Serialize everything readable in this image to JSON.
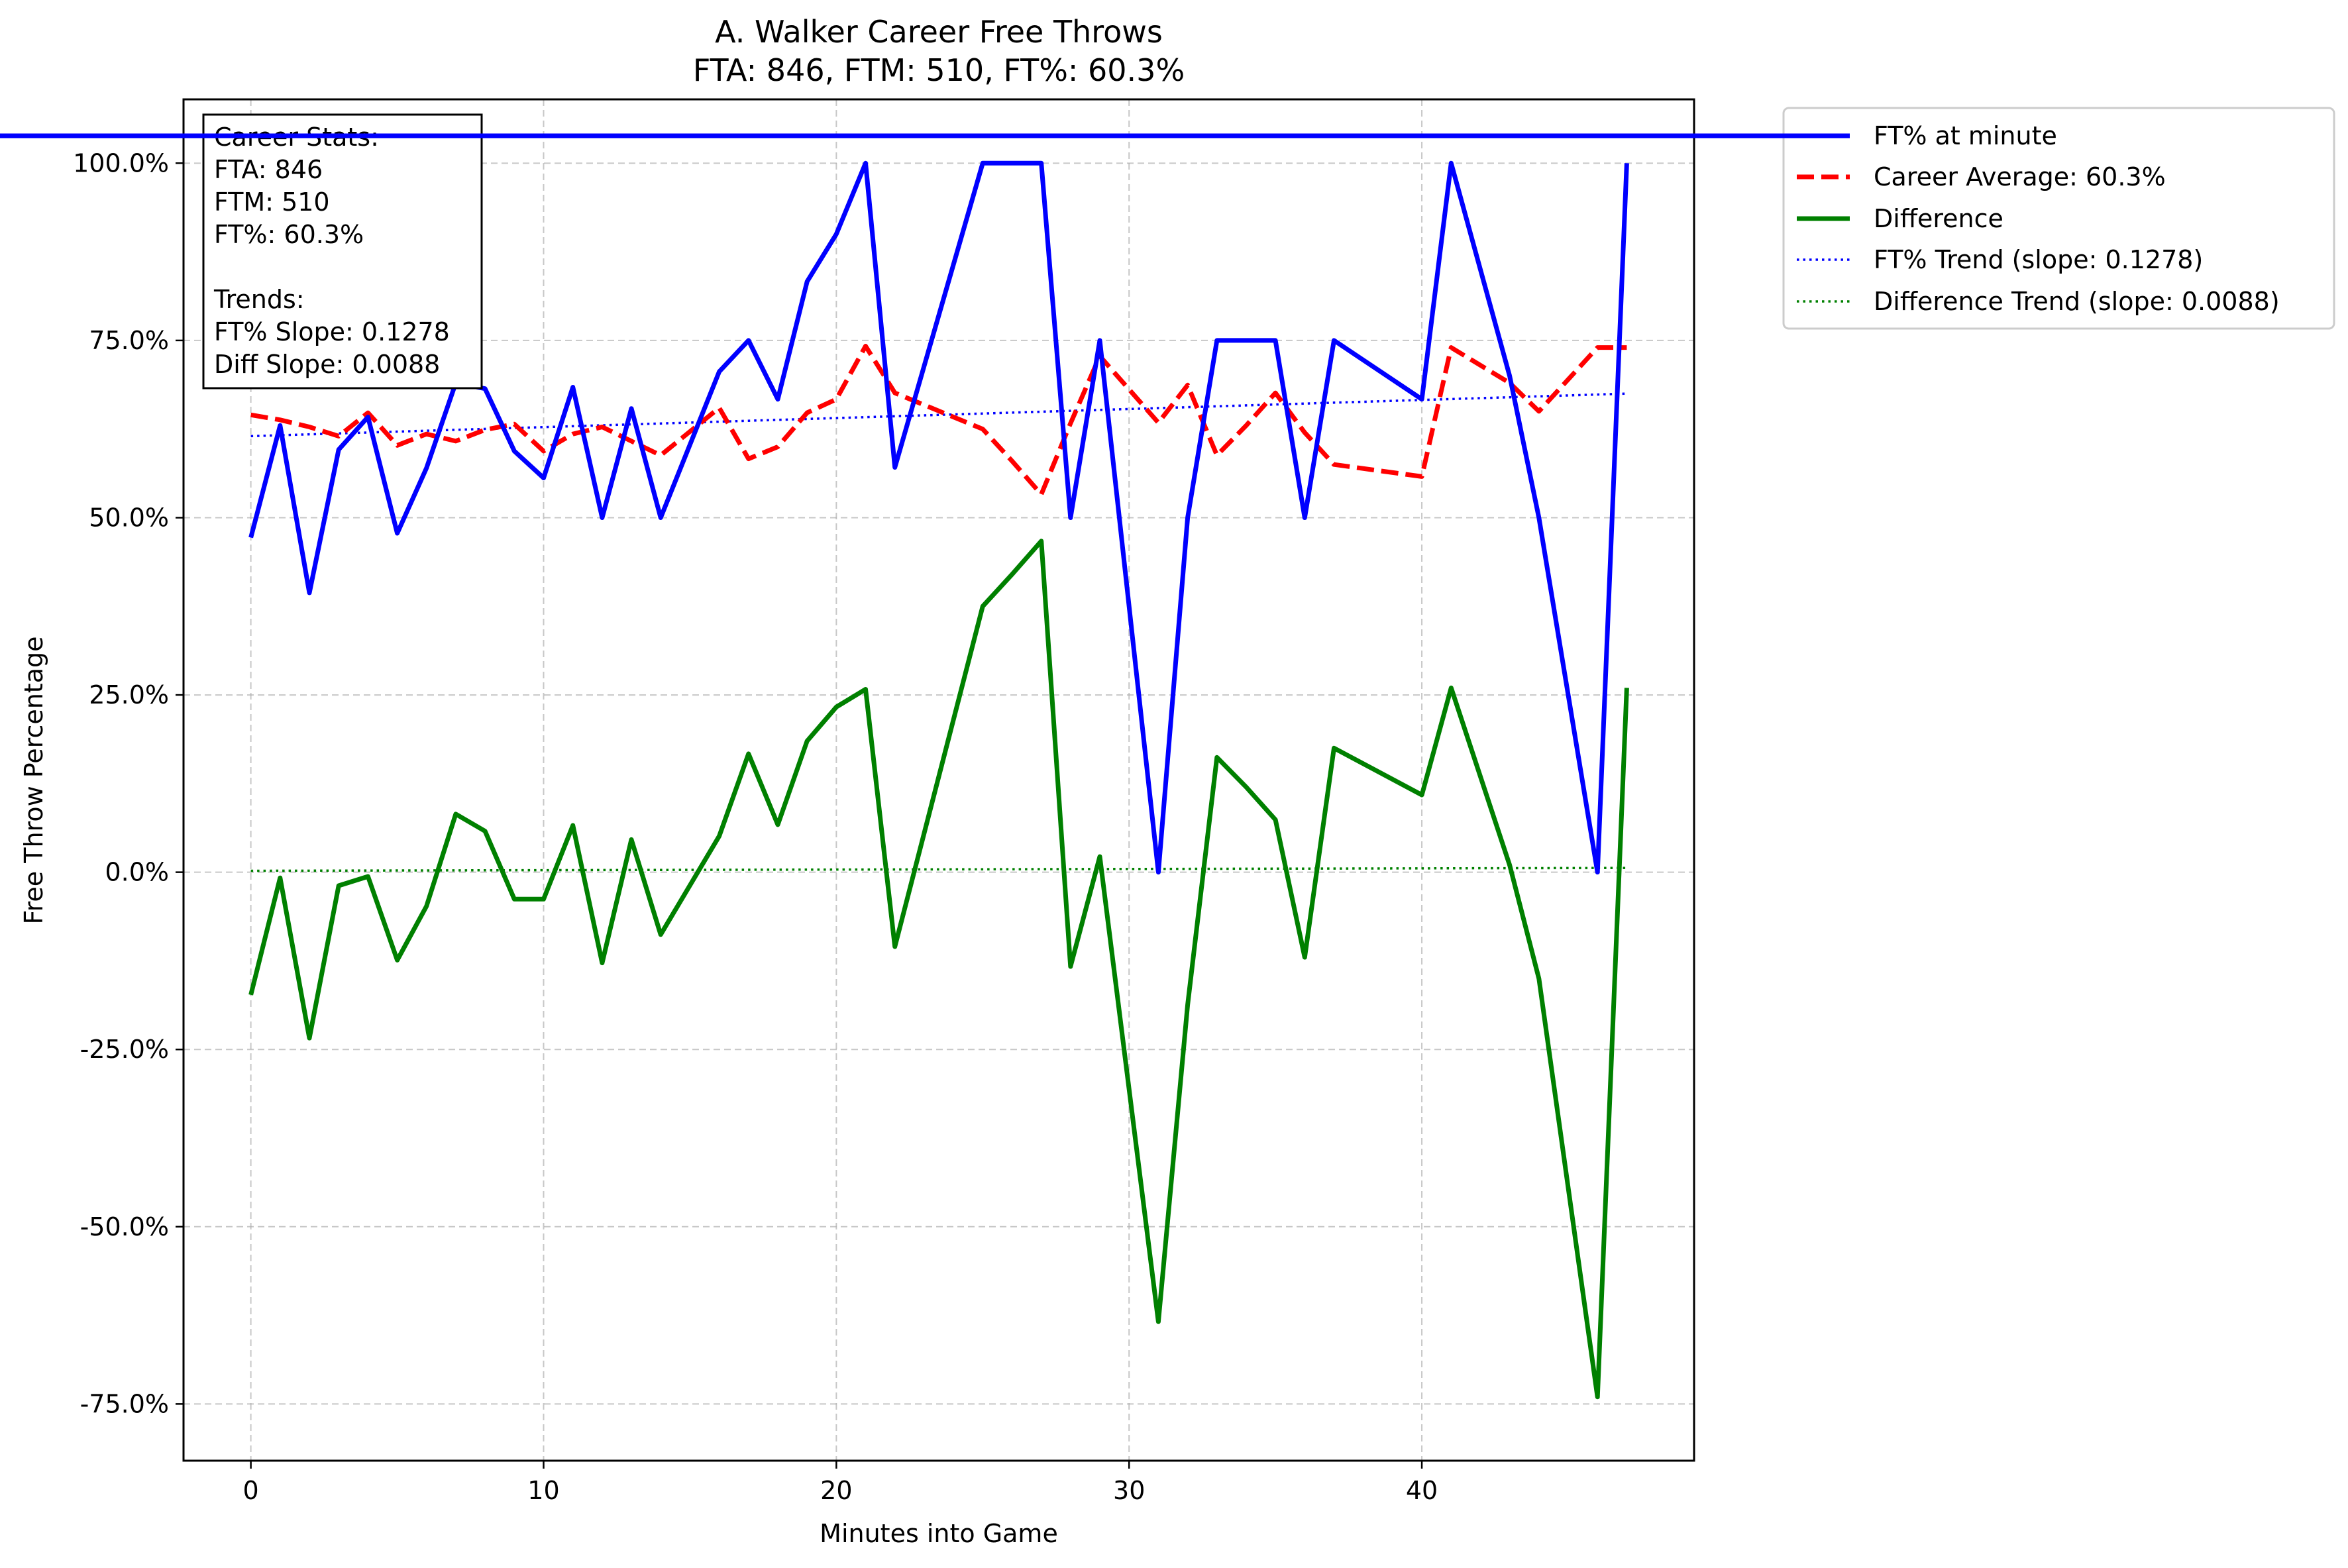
{
  "chart_data": {
    "type": "line",
    "title": "A. Walker Career Free Throws",
    "subtitle": "FTA: 846, FTM: 510, FT%: 60.3%",
    "xlabel": "Minutes into Game",
    "ylabel": "Free Throw Percentage",
    "xlim": [
      -2.3,
      49.3
    ],
    "ylim": [
      -0.83,
      1.09
    ],
    "x_ticks": [
      0,
      10,
      20,
      30,
      40
    ],
    "x_tick_labels": [
      "0",
      "10",
      "20",
      "30",
      "40"
    ],
    "y_ticks": [
      1.0,
      0.75,
      0.5,
      0.25,
      0.0,
      -0.25,
      -0.5,
      -0.75
    ],
    "y_tick_labels": [
      "100.0%",
      "75.0%",
      "50.0%",
      "25.0%",
      "0.0%",
      "-25.0%",
      "-50.0%",
      "-75.0%"
    ],
    "grid": true,
    "legend_position": "outside-top-right",
    "stats_box_lines": [
      "Career Stats:",
      "FTA: 846",
      "FTM: 510",
      "FT%: 60.3%",
      "",
      "Trends:",
      "FT% Slope: 0.1278",
      "Diff Slope: 0.0088"
    ],
    "series": [
      {
        "name": "FT% at minute",
        "color": "#0000ff",
        "style": "solid",
        "x": [
          0,
          1,
          2,
          3,
          4,
          5,
          6,
          7,
          8,
          9,
          10,
          11,
          12,
          13,
          14,
          16,
          17,
          18,
          19,
          20,
          21,
          22,
          25,
          26,
          27,
          28,
          29,
          31,
          32,
          33,
          34,
          35,
          36,
          37,
          40,
          41,
          43,
          44,
          46,
          47
        ],
        "y": [
          0.472,
          0.63,
          0.394,
          0.596,
          0.642,
          0.478,
          0.57,
          0.69,
          0.682,
          0.594,
          0.556,
          0.684,
          0.5,
          0.654,
          0.5,
          0.706,
          0.75,
          0.667,
          0.833,
          0.9,
          1.0,
          0.571,
          1.0,
          1.0,
          1.0,
          0.5,
          0.75,
          0.0,
          0.5,
          0.75,
          0.75,
          0.75,
          0.5,
          0.75,
          0.667,
          1.0,
          0.7,
          0.5,
          0.0,
          1.0
        ]
      },
      {
        "name": "Career Average: 60.3%",
        "color": "#ff0000",
        "style": "dashed",
        "x": [
          0,
          1,
          2,
          3,
          4,
          5,
          6,
          7,
          8,
          9,
          10,
          11,
          12,
          13,
          14,
          16,
          17,
          18,
          19,
          20,
          21,
          22,
          25,
          26,
          27,
          28,
          29,
          31,
          32,
          33,
          34,
          35,
          36,
          37,
          40,
          41,
          43,
          44,
          46,
          47
        ],
        "y": [
          0.645,
          0.638,
          0.628,
          0.615,
          0.648,
          0.602,
          0.618,
          0.608,
          0.624,
          0.632,
          0.594,
          0.618,
          0.628,
          0.608,
          0.588,
          0.655,
          0.583,
          0.6,
          0.648,
          0.667,
          0.742,
          0.676,
          0.625,
          0.58,
          0.533,
          0.633,
          0.728,
          0.634,
          0.687,
          0.588,
          0.63,
          0.676,
          0.62,
          0.575,
          0.558,
          0.74,
          0.69,
          0.65,
          0.74,
          0.74
        ]
      },
      {
        "name": "Difference",
        "color": "#008000",
        "style": "solid",
        "x": [
          0,
          1,
          2,
          3,
          4,
          5,
          6,
          7,
          8,
          9,
          10,
          11,
          12,
          13,
          14,
          16,
          17,
          18,
          19,
          20,
          21,
          22,
          25,
          26,
          27,
          28,
          29,
          31,
          32,
          33,
          34,
          35,
          36,
          37,
          40,
          41,
          43,
          44,
          46,
          47
        ],
        "y": [
          -0.173,
          -0.008,
          -0.234,
          -0.019,
          -0.006,
          -0.124,
          -0.048,
          0.082,
          0.058,
          -0.038,
          -0.038,
          0.066,
          -0.128,
          0.046,
          -0.088,
          0.051,
          0.167,
          0.067,
          0.185,
          0.233,
          0.258,
          -0.105,
          0.375,
          0.42,
          0.467,
          -0.133,
          0.022,
          -0.634,
          -0.187,
          0.162,
          0.12,
          0.074,
          -0.12,
          0.175,
          0.109,
          0.26,
          0.01,
          -0.15,
          -0.74,
          0.26
        ]
      },
      {
        "name": "FT% Trend (slope: 0.1278)",
        "color": "#0000ff",
        "style": "dotted",
        "x": [
          0,
          47
        ],
        "y": [
          0.615,
          0.675
        ]
      },
      {
        "name": "Difference Trend (slope: 0.0088)",
        "color": "#008000",
        "style": "dotted",
        "x": [
          0,
          47
        ],
        "y": [
          0.002,
          0.006
        ]
      }
    ]
  }
}
